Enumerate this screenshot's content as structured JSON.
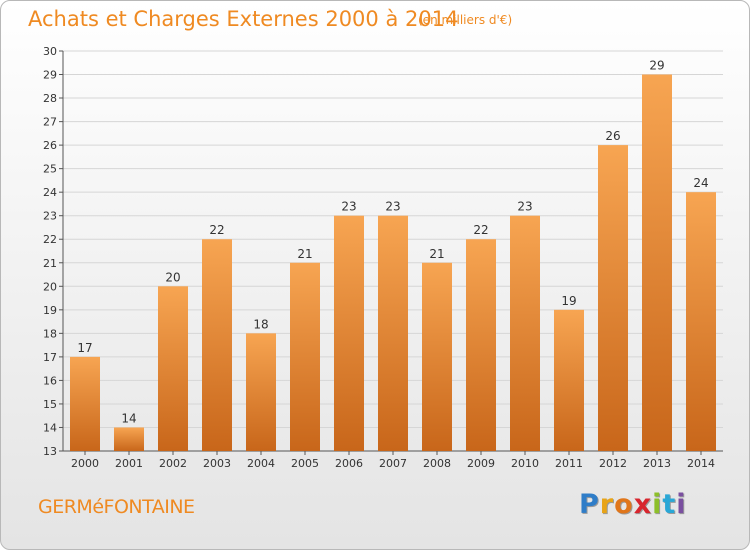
{
  "header": {
    "title": "Achats et Charges Externes 2000 à 2014",
    "subtitle": "(en milliers d'€)"
  },
  "footer": {
    "place": "GERMéFONTAINE",
    "logo_letters": [
      "P",
      "r",
      "o",
      "x",
      "i",
      "t",
      "i"
    ],
    "logo_colors": [
      "#2f7dc8",
      "#e8a417",
      "#e0761b",
      "#d8262e",
      "#8dbf2a",
      "#2aa7d6",
      "#7a4fa0"
    ]
  },
  "chart_data": {
    "type": "bar",
    "categories": [
      "2000",
      "2001",
      "2002",
      "2003",
      "2004",
      "2005",
      "2006",
      "2007",
      "2008",
      "2009",
      "2010",
      "2011",
      "2012",
      "2013",
      "2014"
    ],
    "values": [
      17,
      14,
      20,
      22,
      18,
      21,
      23,
      23,
      21,
      22,
      23,
      19,
      26,
      29,
      24
    ],
    "title": "Achats et Charges Externes 2000 à 2014",
    "ylim": [
      13,
      30
    ],
    "yticks": [
      13,
      14,
      15,
      16,
      17,
      18,
      19,
      20,
      21,
      22,
      23,
      24,
      25,
      26,
      27,
      28,
      29,
      30
    ],
    "grid": true,
    "bar_color_top": "#f7a552",
    "bar_color_bottom": "#c8661a"
  }
}
